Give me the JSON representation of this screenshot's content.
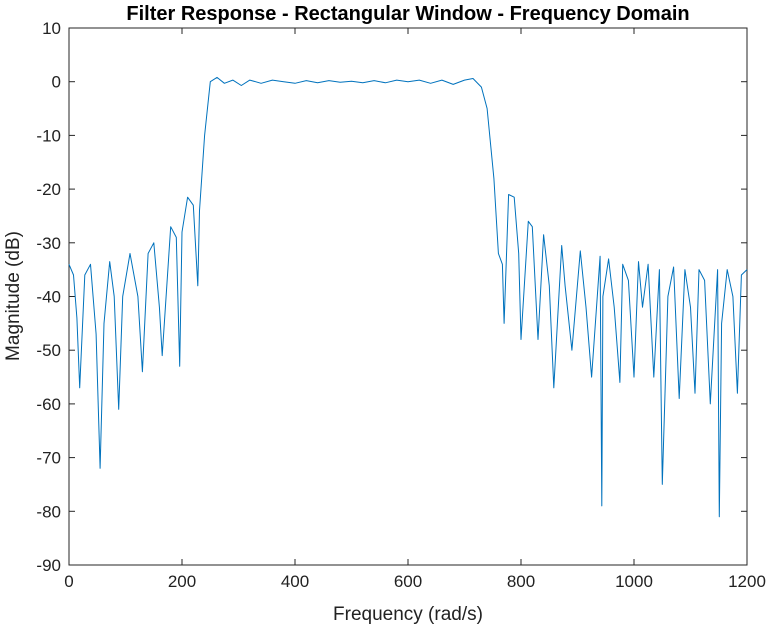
{
  "chart_data": {
    "type": "line",
    "title": "Filter Response - Rectangular Window - Frequency Domain",
    "xlabel": "Frequency (rad/s)",
    "ylabel": "Magnitude (dB)",
    "xlim": [
      0,
      1200
    ],
    "ylim": [
      -90,
      10
    ],
    "xticks": [
      0,
      200,
      400,
      600,
      800,
      1000,
      1200
    ],
    "yticks": [
      10,
      0,
      -10,
      -20,
      -30,
      -40,
      -50,
      -60,
      -70,
      -80,
      -90
    ],
    "grid": false,
    "line_color": "#0072BD",
    "series": [
      {
        "x": [
          0,
          8,
          14,
          19,
          28,
          38,
          48,
          55,
          62,
          72,
          80,
          88,
          95,
          108,
          122,
          130,
          140,
          150,
          160,
          165,
          180,
          190,
          196,
          200,
          210,
          220,
          228,
          231,
          240,
          250,
          262,
          275,
          290,
          305,
          320,
          340,
          360,
          380,
          400,
          420,
          440,
          460,
          480,
          500,
          520,
          540,
          560,
          580,
          600,
          620,
          640,
          660,
          680,
          700,
          715,
          730,
          740,
          752,
          760,
          767,
          770,
          778,
          788,
          796,
          800,
          813,
          820,
          830,
          840,
          850,
          858,
          872,
          878,
          890,
          905,
          915,
          925,
          940,
          943,
          945,
          955,
          965,
          975,
          980,
          990,
          1000,
          1008,
          1015,
          1025,
          1035,
          1045,
          1050,
          1060,
          1070,
          1080,
          1090,
          1100,
          1108,
          1115,
          1125,
          1135,
          1148,
          1151,
          1155,
          1165,
          1175,
          1183,
          1190,
          1200
        ],
        "y": [
          -34,
          -36,
          -44,
          -57,
          -36,
          -34,
          -47,
          -72,
          -45,
          -33.5,
          -40,
          -61,
          -40,
          -32,
          -40,
          -54,
          -32,
          -30,
          -42,
          -51,
          -27,
          -29,
          -53,
          -28,
          -21.5,
          -23,
          -38,
          -24,
          -10,
          0,
          0.8,
          -0.3,
          0.3,
          -0.7,
          0.3,
          -0.3,
          0.3,
          0,
          -0.3,
          0.2,
          -0.2,
          0.2,
          -0.1,
          0.1,
          -0.2,
          0.2,
          -0.2,
          0.3,
          0,
          0.3,
          -0.3,
          0.3,
          -0.5,
          0.3,
          0.6,
          -1,
          -5,
          -18,
          -32,
          -34,
          -45,
          -21,
          -21.5,
          -32,
          -48,
          -26,
          -27,
          -48,
          -28.5,
          -38,
          -57,
          -30.5,
          -38,
          -50,
          -31.5,
          -42,
          -55,
          -32.5,
          -79,
          -40,
          -33,
          -42,
          -56,
          -34,
          -37,
          -55,
          -33.5,
          -42,
          -34,
          -55,
          -35,
          -75,
          -40,
          -34.5,
          -59,
          -35,
          -42,
          -58,
          -35,
          -37,
          -60,
          -35,
          -81,
          -45,
          -35,
          -40,
          -58,
          -36,
          -35
        ]
      }
    ]
  }
}
